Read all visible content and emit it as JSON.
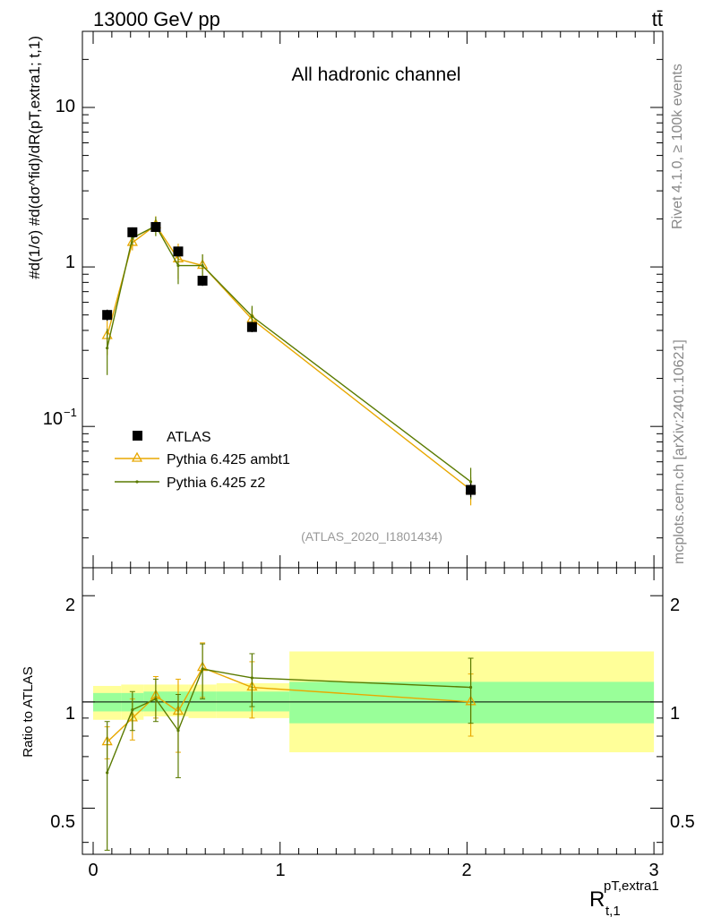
{
  "header": {
    "energy": "13000 GeV pp",
    "process": "tt̄",
    "channel": "All hadronic channel",
    "analysis_id": "(ATLAS_2020_I1801434)"
  },
  "side_text": {
    "rivet": "Rivet 4.1.0, ≥ 100k events",
    "mcplots": "mcplots.cern.ch [arXiv:2401.10621]"
  },
  "axes": {
    "ylabel_main": "#d(1/σ) #d(dσ^fid)/dR(pT,extra1; t,1)",
    "ylabel_ratio": "Ratio to ATLAS",
    "xlabel_base": "R",
    "xlabel_sub": "t,1",
    "xlabel_sup": "pT,extra1",
    "main_yticks": [
      "10",
      "1",
      "10"
    ],
    "main_ytick_exp": "−1",
    "ratio_yticks": [
      "0.5",
      "1",
      "2"
    ],
    "xticks": [
      "0",
      "1",
      "2",
      "3"
    ]
  },
  "legend": {
    "data_label": "ATLAS",
    "mc1_label": "Pythia 6.425 ambt1",
    "mc2_label": "Pythia 6.425 z2"
  },
  "colors": {
    "data": "#000000",
    "mc1": "#e8a800",
    "mc2": "#5a7a00",
    "band_inner": "#99ff99",
    "band_outer": "#ffff99"
  },
  "chart_data": {
    "type": "scatter",
    "title": "All hadronic channel",
    "xlabel": "R^{pT,extra1}_{t,1}",
    "ylabel": "#d 1/σ #d dσ^fid/dR",
    "xlim": [
      -0.08,
      3.0
    ],
    "ylim": [
      0.013,
      30
    ],
    "yscale": "log",
    "ratio_ylim": [
      0.37,
      2.4
    ],
    "x": [
      0.075,
      0.21,
      0.335,
      0.455,
      0.585,
      0.85,
      2.02
    ],
    "bin_edges": [
      0,
      0.15,
      0.27,
      0.4,
      0.51,
      0.66,
      1.05,
      3.0
    ],
    "series": [
      {
        "name": "ATLAS",
        "values": [
          0.5,
          1.65,
          1.78,
          1.25,
          0.82,
          0.42,
          0.04
        ],
        "errors": [
          0.04,
          0.12,
          0.12,
          0.09,
          0.06,
          0.03,
          0.004
        ]
      },
      {
        "name": "Pythia 6.425 ambt1",
        "values": [
          0.37,
          1.42,
          1.83,
          1.12,
          1.02,
          0.47,
          0.04
        ],
        "errors": [
          0.09,
          0.15,
          0.25,
          0.28,
          0.18,
          0.08,
          0.008
        ]
      },
      {
        "name": "Pythia 6.425 z2",
        "values": [
          0.31,
          1.52,
          1.81,
          1.02,
          1.02,
          0.49,
          0.045
        ],
        "errors": [
          0.1,
          0.15,
          0.25,
          0.24,
          0.18,
          0.08,
          0.01
        ]
      }
    ],
    "ratios": [
      {
        "name": "Pythia 6.425 ambt1",
        "values": [
          0.77,
          0.9,
          1.04,
          0.94,
          1.25,
          1.1,
          1.0
        ],
        "errors": [
          0.08,
          0.12,
          0.14,
          0.22,
          0.22,
          0.2,
          0.2
        ]
      },
      {
        "name": "Pythia 6.425 z2",
        "values": [
          0.63,
          0.95,
          1.02,
          0.83,
          1.24,
          1.17,
          1.1
        ],
        "errors": [
          0.25,
          0.12,
          0.14,
          0.22,
          0.22,
          0.2,
          0.23
        ]
      }
    ],
    "ratio_band_inner": [
      [
        0.94,
        1.06
      ],
      [
        0.94,
        1.06
      ],
      [
        0.94,
        1.07
      ],
      [
        0.94,
        1.07
      ],
      [
        0.94,
        1.07
      ],
      [
        0.94,
        1.07
      ],
      [
        0.87,
        1.14
      ]
    ],
    "ratio_band_outer": [
      [
        0.89,
        1.11
      ],
      [
        0.89,
        1.12
      ],
      [
        0.91,
        1.12
      ],
      [
        0.91,
        1.12
      ],
      [
        0.9,
        1.12
      ],
      [
        0.9,
        1.13
      ],
      [
        0.72,
        1.39
      ]
    ]
  }
}
